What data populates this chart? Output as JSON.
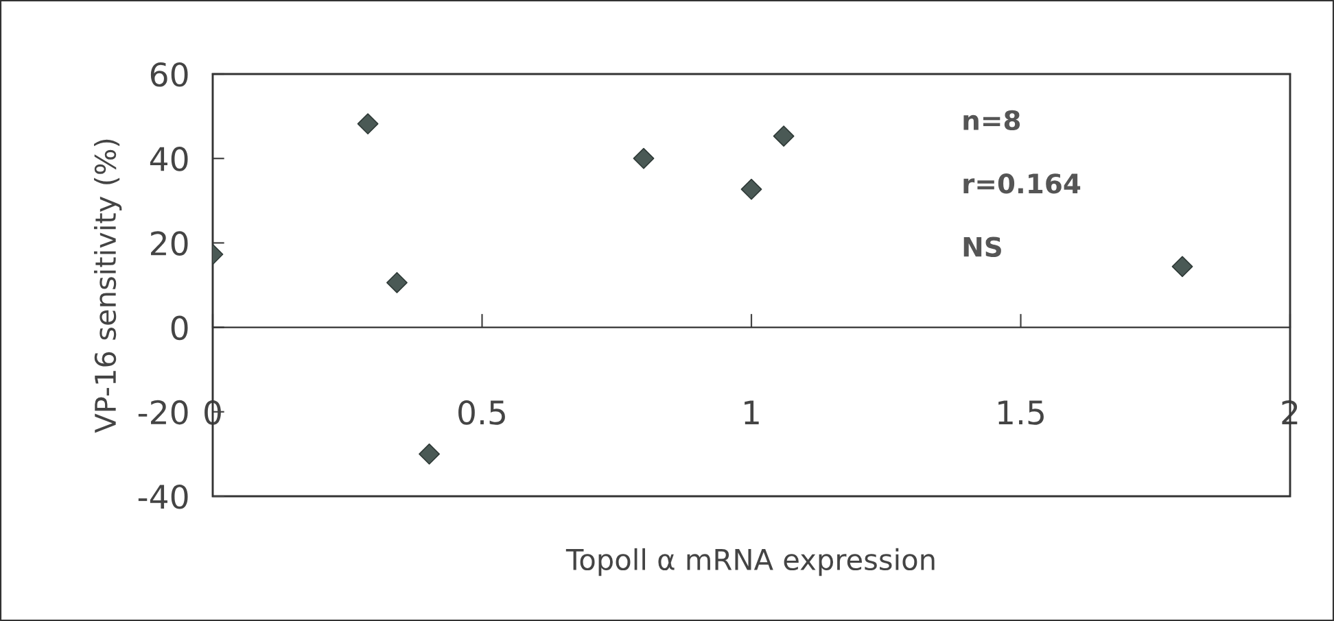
{
  "chart_data": {
    "type": "scatter",
    "xlabel": "Topoll α mRNA expression",
    "ylabel": "VP-16 sensitivity (%)",
    "x": [
      0,
      0.288,
      0.342,
      0.402,
      0.8,
      1.0,
      1.06,
      1.8
    ],
    "series": [
      {
        "color": "#4a5955",
        "values": [
          17.3,
          48.2,
          10.6,
          -30,
          40,
          32.7,
          45.3,
          14.4
        ]
      }
    ],
    "marker": "diamond",
    "xlim": [
      0,
      2
    ],
    "xticks": [
      0,
      0.5,
      1,
      1.5,
      2
    ],
    "ylim": [
      -40,
      60
    ],
    "yticks": [
      -40,
      -20,
      0,
      20,
      40,
      60
    ],
    "grid": false,
    "legend": false,
    "annotations": [
      "n=8",
      "r=0.164",
      "NS"
    ]
  }
}
